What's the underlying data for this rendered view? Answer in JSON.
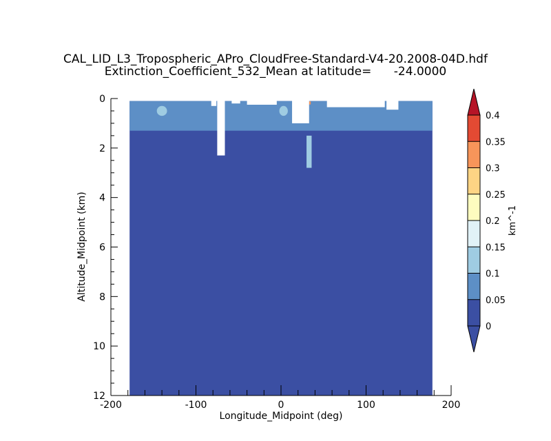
{
  "chart_data": {
    "type": "contour",
    "title": "CAL_LID_L3_Tropospheric_APro_CloudFree-Standard-V4-20.2008-04D.hdf",
    "subtitle": "Extinction_Coefficient_532_Mean at latitude=      -24.0000",
    "xlabel": "Longitude_Midpoint (deg)",
    "ylabel": "Altitude_Midpoint (km)",
    "xlim": [
      -200,
      200
    ],
    "ylim": [
      12,
      0
    ],
    "x_ticks": [
      -200,
      -100,
      0,
      100,
      200
    ],
    "x_tick_labels": [
      "-200",
      "-100",
      "0",
      "100",
      "200"
    ],
    "y_ticks": [
      0,
      2,
      4,
      6,
      8,
      10,
      12
    ],
    "y_tick_labels": [
      "0",
      "2",
      "4",
      "6",
      "8",
      "10",
      "12"
    ],
    "data_extent": {
      "lon": [
        -178,
        178
      ],
      "alt": [
        0.1,
        12
      ]
    },
    "colorbar": {
      "label": "km^-1",
      "levels": [
        0,
        0.05,
        0.1,
        0.15,
        0.2,
        0.25,
        0.3,
        0.35,
        0.4
      ],
      "level_labels": [
        "0",
        "0.05",
        "0.1",
        "0.15",
        "0.2",
        "0.25",
        "0.3",
        "0.35",
        "0.4"
      ],
      "colors": [
        "#3b4fa3",
        "#5d8fc6",
        "#9fcce2",
        "#e1f2f7",
        "#fdfcbf",
        "#fdd484",
        "#f7955a",
        "#e34a33",
        "#b61427"
      ],
      "extend": "both"
    },
    "background_value_class": 0,
    "features": [
      {
        "kind": "elevated_extinction",
        "lon": [
          -178,
          178
        ],
        "alt": [
          0.1,
          1.3
        ],
        "value_class": 1
      },
      {
        "kind": "elevated_extinction",
        "lon": [
          30,
          36
        ],
        "alt": [
          1.5,
          2.8
        ],
        "value_class": 2
      },
      {
        "kind": "elevated_extinction",
        "lon": [
          -146,
          -134
        ],
        "alt": [
          0.3,
          0.7
        ],
        "value_class": 2
      },
      {
        "kind": "elevated_extinction",
        "lon": [
          -2,
          8
        ],
        "alt": [
          0.3,
          0.7
        ],
        "value_class": 2
      },
      {
        "kind": "elevated_extinction",
        "lon": [
          33,
          35
        ],
        "alt": [
          0.1,
          0.25
        ],
        "value_class": 6
      },
      {
        "kind": "missing",
        "lon": [
          -75,
          -66
        ],
        "alt": [
          0,
          2.3
        ]
      },
      {
        "kind": "missing",
        "lon": [
          13,
          33
        ],
        "alt": [
          0,
          1.0
        ]
      },
      {
        "kind": "missing",
        "lon": [
          -82,
          -76
        ],
        "alt": [
          0,
          0.3
        ]
      },
      {
        "kind": "missing",
        "lon": [
          -58,
          -48
        ],
        "alt": [
          0,
          0.2
        ]
      },
      {
        "kind": "missing",
        "lon": [
          -40,
          -5
        ],
        "alt": [
          0,
          0.25
        ]
      },
      {
        "kind": "missing",
        "lon": [
          54,
          122
        ],
        "alt": [
          0,
          0.35
        ]
      },
      {
        "kind": "missing",
        "lon": [
          124,
          138
        ],
        "alt": [
          0,
          0.45
        ]
      }
    ]
  }
}
